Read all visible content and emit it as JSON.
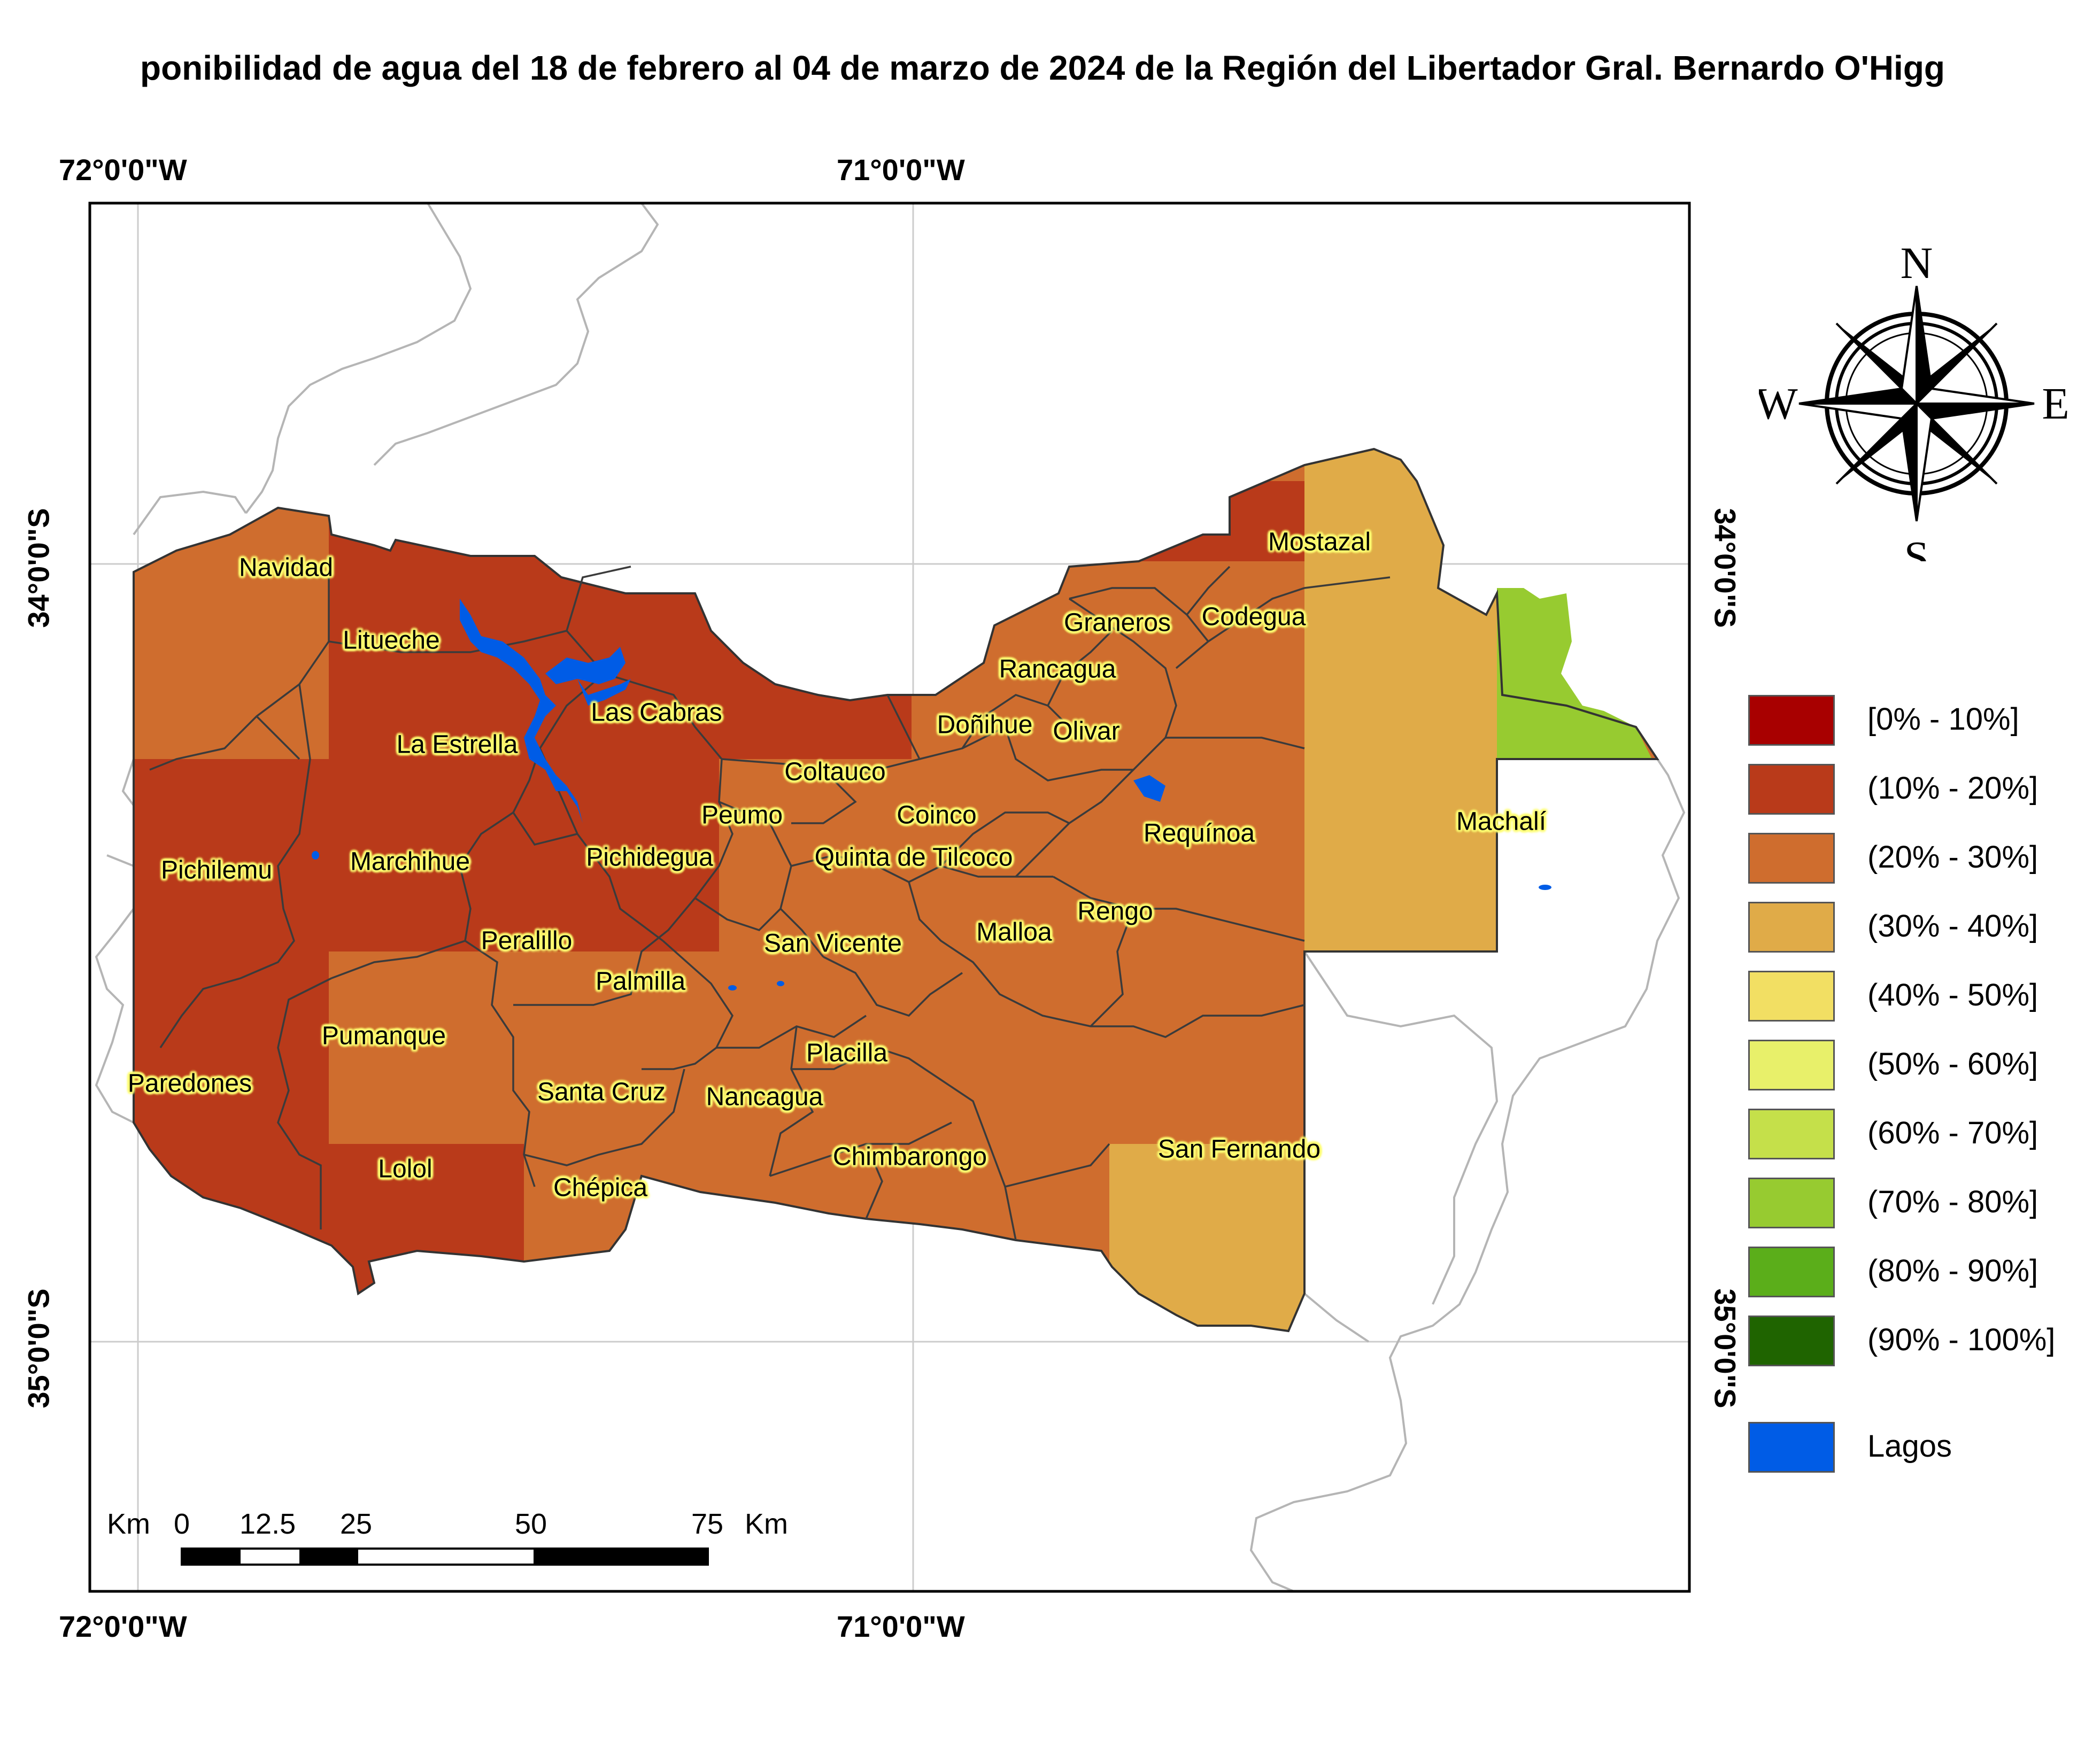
{
  "title": "ponibilidad de agua del 18 de febrero al 04 de marzo de 2024 de la Región del Libertador Gral. Bernardo O'Higg",
  "coords": {
    "lon_left": "72°0'0\"W",
    "lon_right": "71°0'0\"W",
    "lat_top": "34°0'0\"S",
    "lat_bottom": "35°0'0\"S"
  },
  "compass": {
    "n": "N",
    "s": "S",
    "e": "E",
    "w": "W"
  },
  "legend": [
    {
      "label": "[0% - 10%]",
      "color": "#A80000"
    },
    {
      "label": "(10% - 20%]",
      "color": "#B93A1A"
    },
    {
      "label": "(20% - 30%]",
      "color": "#CF6D2E"
    },
    {
      "label": "(30% - 40%]",
      "color": "#E0AB48"
    },
    {
      "label": "(40% - 50%]",
      "color": "#F2DF63"
    },
    {
      "label": "(50% - 60%]",
      "color": "#E8F06A"
    },
    {
      "label": "(60% - 70%]",
      "color": "#C5E04A"
    },
    {
      "label": "(70% - 80%]",
      "color": "#97CB30"
    },
    {
      "label": "(80% - 90%]",
      "color": "#5BAE1A"
    },
    {
      "label": "(90% - 100%]",
      "color": "#1F6400"
    },
    {
      "label": "Lagos",
      "color": "#005CE6"
    }
  ],
  "scalebar": {
    "unit_left": "Km",
    "ticks": [
      "0",
      "12.5",
      "25",
      "50",
      "75"
    ],
    "unit_right": "Km"
  },
  "places": [
    "Navidad",
    "Litueche",
    "Las Cabras",
    "La Estrella",
    "Pichilemu",
    "Marchihue",
    "Pichidegua",
    "Peralillo",
    "Palmilla",
    "Pumanque",
    "Paredones",
    "Santa Cruz",
    "Nancagua",
    "Lolol",
    "Chépica",
    "Chimbarongo",
    "Placilla",
    "San Vicente",
    "Malloa",
    "Rengo",
    "Requínoa",
    "Quinta de Tilcoco",
    "Coinco",
    "Peumo",
    "Coltauco",
    "Doñihue",
    "Olivar",
    "Rancagua",
    "Graneros",
    "Codegua",
    "Mostazal",
    "Machalí",
    "San Fernando"
  ]
}
